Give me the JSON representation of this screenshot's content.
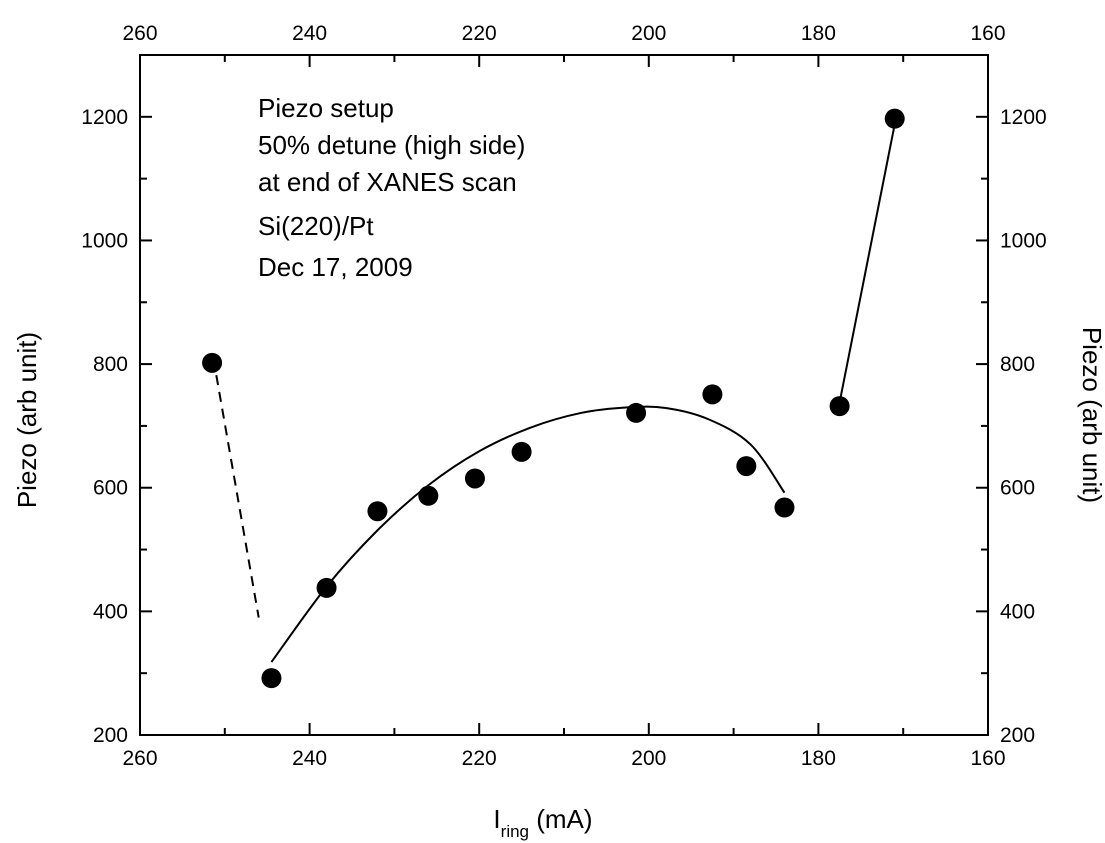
{
  "chart_data": {
    "type": "scatter",
    "xlabel_main": "I",
    "xlabel_sub": "ring",
    "xlabel_unit": " (mA)",
    "ylabel_left": "Piezo (arb unit)",
    "ylabel_right": "Piezo (arb unit)",
    "xlim": [
      260,
      160
    ],
    "ylim": [
      200,
      1300
    ],
    "x_ticks": [
      260,
      240,
      220,
      200,
      180,
      160
    ],
    "y_ticks": [
      200,
      400,
      600,
      800,
      1000,
      1200
    ],
    "annotation_lines": [
      "Piezo setup",
      "50% detune (high side)",
      "at end of XANES scan",
      "Si(220)/Pt",
      "Dec 17, 2009"
    ],
    "points": [
      {
        "x": 251.5,
        "y": 802
      },
      {
        "x": 244.5,
        "y": 292
      },
      {
        "x": 238.0,
        "y": 438
      },
      {
        "x": 232.0,
        "y": 562
      },
      {
        "x": 226.0,
        "y": 587
      },
      {
        "x": 220.5,
        "y": 615
      },
      {
        "x": 215.0,
        "y": 658
      },
      {
        "x": 201.5,
        "y": 721
      },
      {
        "x": 192.5,
        "y": 751
      },
      {
        "x": 188.5,
        "y": 635
      },
      {
        "x": 184.0,
        "y": 568
      },
      {
        "x": 177.5,
        "y": 732
      },
      {
        "x": 171.0,
        "y": 1197
      }
    ],
    "fit_curve": [
      {
        "x": 244.5,
        "y": 318
      },
      {
        "x": 238.0,
        "y": 440
      },
      {
        "x": 232.0,
        "y": 531
      },
      {
        "x": 226.0,
        "y": 604
      },
      {
        "x": 220.0,
        "y": 659
      },
      {
        "x": 214.0,
        "y": 697
      },
      {
        "x": 208.0,
        "y": 721
      },
      {
        "x": 202.5,
        "y": 730
      },
      {
        "x": 198.0,
        "y": 729
      },
      {
        "x": 193.0,
        "y": 711
      },
      {
        "x": 188.0,
        "y": 670
      },
      {
        "x": 184.0,
        "y": 592
      }
    ],
    "dashed_line": [
      {
        "x": 251.0,
        "y": 782
      },
      {
        "x": 246.0,
        "y": 390
      }
    ],
    "solid_segment": [
      {
        "x": 177.5,
        "y": 738
      },
      {
        "x": 171.0,
        "y": 1188
      }
    ]
  }
}
